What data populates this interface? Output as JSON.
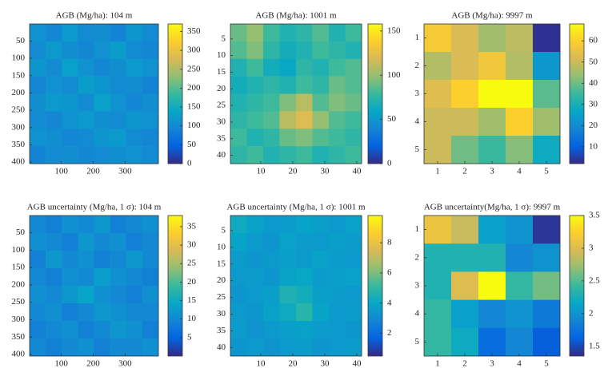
{
  "chart_data": [
    {
      "type": "heatmap",
      "title": "AGB (Mg/ha): 104 m",
      "colormap": "parula",
      "xlim": [
        0.5,
        404.5
      ],
      "ylim": [
        0.5,
        404.5
      ],
      "xticks": [
        100,
        200,
        300
      ],
      "yticks": [
        50,
        100,
        150,
        200,
        250,
        300,
        350,
        400
      ],
      "clim": [
        0,
        370
      ],
      "cticks": [
        0,
        50,
        100,
        150,
        200,
        250,
        300,
        350
      ],
      "values": [
        [
          110,
          95,
          120,
          100,
          105,
          90,
          115,
          100
        ],
        [
          100,
          120,
          105,
          95,
          110,
          125,
          100,
          95
        ],
        [
          115,
          100,
          130,
          110,
          95,
          105,
          120,
          110
        ],
        [
          95,
          110,
          100,
          125,
          115,
          100,
          105,
          90
        ],
        [
          105,
          120,
          115,
          100,
          130,
          110,
          95,
          105
        ],
        [
          100,
          95,
          110,
          120,
          105,
          100,
          115,
          110
        ],
        [
          110,
          105,
          95,
          100,
          115,
          120,
          100,
          95
        ],
        [
          90,
          100,
          105,
          95,
          100,
          105,
          110,
          100
        ]
      ]
    },
    {
      "type": "heatmap",
      "title": "AGB (Mg/ha): 1001 m",
      "colormap": "parula",
      "xlim": [
        0.5,
        41.5
      ],
      "ylim": [
        0.5,
        42.5
      ],
      "xticks": [
        10,
        20,
        30,
        40
      ],
      "yticks": [
        5,
        10,
        15,
        20,
        25,
        30,
        35,
        40
      ],
      "clim": [
        0,
        158
      ],
      "cticks": [
        0,
        50,
        100,
        150
      ],
      "values": [
        [
          90,
          100,
          80,
          70,
          75,
          85,
          70,
          80
        ],
        [
          85,
          95,
          75,
          65,
          70,
          80,
          75,
          70
        ],
        [
          70,
          80,
          65,
          60,
          75,
          70,
          80,
          85
        ],
        [
          65,
          70,
          75,
          70,
          80,
          75,
          90,
          85
        ],
        [
          70,
          75,
          80,
          95,
          110,
          85,
          95,
          90
        ],
        [
          75,
          80,
          85,
          110,
          120,
          100,
          85,
          80
        ],
        [
          80,
          70,
          75,
          90,
          95,
          85,
          80,
          75
        ],
        [
          75,
          80,
          70,
          75,
          80,
          70,
          75,
          80
        ]
      ]
    },
    {
      "type": "heatmap",
      "title": "AGB (Mg/ha): 9997 m",
      "colormap": "parula",
      "xlim": [
        0.5,
        5.5
      ],
      "ylim": [
        0.5,
        5.5
      ],
      "xticks": [
        1,
        2,
        3,
        4,
        5
      ],
      "yticks": [
        1,
        2,
        3,
        4,
        5
      ],
      "clim": [
        2,
        68
      ],
      "cticks": [
        10,
        20,
        30,
        40,
        50,
        60
      ],
      "values": [
        [
          58,
          52,
          45,
          48,
          3
        ],
        [
          47,
          52,
          57,
          47,
          23
        ],
        [
          53,
          60,
          68,
          68,
          38
        ],
        [
          50,
          50,
          45,
          60,
          45
        ],
        [
          50,
          40,
          35,
          42,
          28
        ]
      ]
    },
    {
      "type": "heatmap",
      "title": "AGB uncertainty (Mg/ha, 1 σ): 104 m",
      "colormap": "parula",
      "xlim": [
        0.5,
        404.5
      ],
      "ylim": [
        0.5,
        404.5
      ],
      "xticks": [
        100,
        200,
        300
      ],
      "yticks": [
        50,
        100,
        150,
        200,
        250,
        300,
        350,
        400
      ],
      "clim": [
        0,
        38
      ],
      "cticks": [
        5,
        10,
        15,
        20,
        25,
        30,
        35
      ],
      "values": [
        [
          10,
          9,
          11,
          10,
          12,
          9,
          10,
          11
        ],
        [
          11,
          10,
          9,
          12,
          10,
          11,
          9,
          10
        ],
        [
          9,
          12,
          10,
          11,
          9,
          10,
          12,
          10
        ],
        [
          10,
          9,
          11,
          10,
          13,
          11,
          10,
          9
        ],
        [
          11,
          10,
          12,
          14,
          11,
          10,
          9,
          11
        ],
        [
          10,
          11,
          9,
          10,
          12,
          11,
          10,
          10
        ],
        [
          9,
          10,
          11,
          9,
          10,
          12,
          11,
          9
        ],
        [
          10,
          9,
          10,
          11,
          9,
          10,
          10,
          11
        ]
      ]
    },
    {
      "type": "heatmap",
      "title": "AGB uncertainty (Mg/ha, 1 σ): 1001 m",
      "colormap": "parula",
      "xlim": [
        0.5,
        41.5
      ],
      "ylim": [
        0.5,
        42.5
      ],
      "xticks": [
        10,
        20,
        30,
        40
      ],
      "yticks": [
        5,
        10,
        15,
        20,
        25,
        30,
        35,
        40
      ],
      "clim": [
        0.5,
        9.8
      ],
      "cticks": [
        2,
        4,
        6,
        8
      ],
      "values": [
        [
          4.2,
          3.8,
          3.5,
          3.6,
          3.9,
          3.7,
          3.5,
          3.8
        ],
        [
          3.9,
          3.5,
          3.4,
          3.8,
          3.6,
          3.5,
          3.7,
          3.6
        ],
        [
          3.6,
          3.4,
          3.5,
          3.7,
          3.5,
          3.8,
          3.6,
          3.5
        ],
        [
          3.5,
          3.6,
          3.4,
          3.9,
          4.0,
          3.6,
          3.7,
          3.8
        ],
        [
          3.4,
          3.5,
          3.7,
          4.6,
          4.3,
          3.7,
          3.6,
          3.5
        ],
        [
          3.5,
          3.4,
          3.8,
          4.2,
          4.8,
          3.9,
          3.5,
          3.6
        ],
        [
          3.6,
          3.3,
          3.5,
          3.7,
          3.8,
          3.6,
          3.5,
          3.4
        ],
        [
          3.4,
          3.5,
          3.3,
          3.5,
          3.6,
          3.4,
          3.5,
          3.6
        ]
      ]
    },
    {
      "type": "heatmap",
      "title": "AGB uncertainty(Mg/ha, 1 σ): 9997 m",
      "colormap": "parula",
      "xlim": [
        0.5,
        5.5
      ],
      "ylim": [
        0.5,
        5.5
      ],
      "xticks": [
        1,
        2,
        3,
        4,
        5
      ],
      "yticks": [
        1,
        2,
        3,
        4,
        5
      ],
      "clim": [
        1.35,
        3.5
      ],
      "cticks": [
        1.5,
        2,
        2.5,
        3,
        3.5
      ],
      "values": [
        [
          3.1,
          2.9,
          2.1,
          2.0,
          1.4
        ],
        [
          2.3,
          2.3,
          2.3,
          1.9,
          2.0
        ],
        [
          2.3,
          3.0,
          3.5,
          2.4,
          2.6
        ],
        [
          2.4,
          2.1,
          1.9,
          2.0,
          1.8
        ],
        [
          2.4,
          2.2,
          1.7,
          1.9,
          1.6
        ]
      ]
    }
  ]
}
